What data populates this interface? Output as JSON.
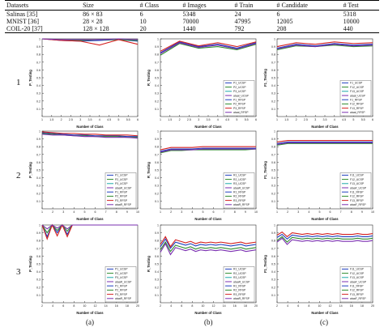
{
  "table": {
    "headers": [
      "Datasets",
      "Size",
      "# Class",
      "# Images",
      "# Train",
      "# Candidate",
      "# Test"
    ],
    "rows": [
      [
        "Salinas [35]",
        "86 × 83",
        "6",
        "5348",
        "24",
        "6",
        "5318"
      ],
      [
        "MNIST [36]",
        "28 × 28",
        "10",
        "70000",
        "47995",
        "12005",
        "10000"
      ],
      [
        "COIL-20 [37]",
        "128 × 128",
        "20",
        "1440",
        "792",
        "208",
        "440"
      ]
    ]
  },
  "row_labels": [
    "1",
    "2",
    "3"
  ],
  "col_labels": [
    "(a)",
    "(b)",
    "(c)"
  ],
  "colors": {
    "UCSP": [
      "#1f3fbf",
      "#2e8b2e",
      "#18a8a8",
      "#7a2fb0"
    ],
    "RFSP": [
      "#1f3fbf",
      "#2e8b2e",
      "#d42020",
      "#7a2fb0"
    ]
  },
  "chart_data": [
    {
      "type": "line",
      "row": 1,
      "col": "a",
      "xlabel": "Number of Class",
      "ylabel": "P_Testing",
      "x_ticks": [
        "1",
        "1.5",
        "2",
        "2.5",
        "3",
        "3.5",
        "4",
        "4.5",
        "5",
        "5.5",
        "6"
      ],
      "y_ticks": [
        "0.1",
        "0.2",
        "0.3",
        "0.4",
        "0.5",
        "0.6",
        "0.7",
        "0.8",
        "0.9",
        "1"
      ],
      "ylim": [
        0,
        1
      ],
      "xlim": [
        1,
        6
      ],
      "x": [
        1,
        2,
        3,
        4,
        5,
        6
      ],
      "series": [
        {
          "values": [
            1.0,
            0.98,
            0.97,
            0.98,
            0.99,
            0.97
          ]
        },
        {
          "values": [
            1.0,
            0.99,
            0.98,
            0.99,
            0.99,
            0.98
          ]
        },
        {
          "values": [
            1.0,
            0.98,
            0.97,
            0.92,
            0.99,
            0.93
          ]
        },
        {
          "values": [
            1.0,
            0.99,
            0.99,
            0.99,
            1.0,
            0.99
          ]
        }
      ]
    },
    {
      "type": "line",
      "row": 1,
      "col": "b",
      "xlabel": "Number of Class",
      "ylabel": "R_Testing",
      "x_ticks": [
        "1",
        "1.5",
        "2",
        "2.5",
        "3",
        "3.5",
        "4",
        "4.5",
        "5",
        "5.5",
        "6"
      ],
      "y_ticks": [
        "0.1",
        "0.2",
        "0.3",
        "0.4",
        "0.5",
        "0.6",
        "0.7",
        "0.8",
        "0.9",
        "1"
      ],
      "ylim": [
        0,
        1
      ],
      "xlim": [
        1,
        6
      ],
      "x": [
        1,
        2,
        3,
        4,
        5,
        6
      ],
      "legend": [
        "P1_UCSP",
        "P2_UCSP",
        "P3_UCSP",
        "ataat_UCSP",
        "P1_RFSP",
        "P2_RFSP",
        "P3_RFSP",
        "ataat_RFSP"
      ],
      "series": [
        {
          "values": [
            0.82,
            0.96,
            0.9,
            0.93,
            0.88,
            0.95
          ]
        },
        {
          "values": [
            0.79,
            0.94,
            0.88,
            0.9,
            0.86,
            0.93
          ]
        },
        {
          "values": [
            0.84,
            0.97,
            0.91,
            0.95,
            0.9,
            0.96
          ]
        },
        {
          "values": [
            0.81,
            0.95,
            0.89,
            0.92,
            0.87,
            0.94
          ]
        }
      ]
    },
    {
      "type": "line",
      "row": 1,
      "col": "c",
      "xlabel": "Number of Class",
      "ylabel": "F1_Testing",
      "x_ticks": [
        "1",
        "1.5",
        "2",
        "2.5",
        "3",
        "3.5",
        "4",
        "4.5",
        "5",
        "5.5",
        "6"
      ],
      "y_ticks": [
        "0.1",
        "0.2",
        "0.3",
        "0.4",
        "0.5",
        "0.6",
        "0.7",
        "0.8",
        "0.9",
        "1"
      ],
      "ylim": [
        0,
        1
      ],
      "xlim": [
        1,
        6
      ],
      "x": [
        1,
        2,
        3,
        4,
        5,
        6
      ],
      "legend": [
        "F1_UCSP",
        "F12_UCSP",
        "F13_UCSP",
        "ataat_UCSP",
        "F1_RFSP",
        "F12_RFSP",
        "F13_RFSP",
        "ataat_RFSP"
      ],
      "series": [
        {
          "values": [
            0.88,
            0.93,
            0.91,
            0.94,
            0.92,
            0.93
          ]
        },
        {
          "values": [
            0.86,
            0.91,
            0.9,
            0.92,
            0.9,
            0.91
          ]
        },
        {
          "values": [
            0.9,
            0.95,
            0.93,
            0.96,
            0.94,
            0.95
          ]
        },
        {
          "values": [
            0.87,
            0.92,
            0.9,
            0.93,
            0.91,
            0.92
          ]
        }
      ]
    },
    {
      "type": "line",
      "row": 2,
      "col": "a",
      "xlabel": "Number of Class",
      "ylabel": "P_Testing",
      "x_ticks": [
        "1",
        "2",
        "3",
        "4",
        "5",
        "6",
        "7",
        "8",
        "9",
        "10"
      ],
      "y_ticks": [
        "0.1",
        "0.2",
        "0.3",
        "0.4",
        "0.5",
        "0.6",
        "0.7",
        "0.8",
        "0.9",
        "1"
      ],
      "ylim": [
        0,
        1
      ],
      "xlim": [
        1,
        10
      ],
      "x": [
        1,
        2,
        3,
        4,
        5,
        6,
        7,
        8,
        9,
        10
      ],
      "legend": [
        "P1_UCSP",
        "P2_UCSP",
        "P3_UCSP",
        "ataaR_UCSP",
        "P1_RFSP",
        "P2_RFSP",
        "P3_RFSP",
        "ataaR_RFSP"
      ],
      "series": [
        {
          "values": [
            0.98,
            0.97,
            0.96,
            0.95,
            0.95,
            0.94,
            0.94,
            0.94,
            0.93,
            0.93
          ]
        },
        {
          "values": [
            0.97,
            0.96,
            0.95,
            0.94,
            0.94,
            0.93,
            0.93,
            0.93,
            0.92,
            0.92
          ]
        },
        {
          "values": [
            0.99,
            0.98,
            0.97,
            0.97,
            0.96,
            0.96,
            0.95,
            0.95,
            0.95,
            0.94
          ]
        },
        {
          "values": [
            0.96,
            0.95,
            0.95,
            0.94,
            0.93,
            0.93,
            0.92,
            0.92,
            0.92,
            0.91
          ]
        }
      ]
    },
    {
      "type": "line",
      "row": 2,
      "col": "b",
      "xlabel": "Number of Class",
      "ylabel": "R_Testing",
      "x_ticks": [
        "1",
        "2",
        "3",
        "4",
        "5",
        "6",
        "7",
        "8",
        "9",
        "10"
      ],
      "y_ticks": [
        "0.1",
        "0.2",
        "0.3",
        "0.4",
        "0.5",
        "0.6",
        "0.7",
        "0.8",
        "0.9",
        "1"
      ],
      "ylim": [
        0,
        1
      ],
      "xlim": [
        1,
        10
      ],
      "x": [
        1,
        2,
        3,
        4,
        5,
        6,
        7,
        8,
        9,
        10
      ],
      "legend": [
        "R1_UCSP",
        "R2_UCSP",
        "R3_UCSP",
        "ataaR_UCSP",
        "R1_RFSP",
        "R2_RFSP",
        "R3_RFSP",
        "ataaR_RFSP"
      ],
      "series": [
        {
          "values": [
            0.74,
            0.77,
            0.77,
            0.77,
            0.78,
            0.78,
            0.78,
            0.78,
            0.78,
            0.78
          ]
        },
        {
          "values": [
            0.72,
            0.75,
            0.75,
            0.76,
            0.76,
            0.76,
            0.76,
            0.76,
            0.76,
            0.77
          ]
        },
        {
          "values": [
            0.76,
            0.79,
            0.79,
            0.79,
            0.8,
            0.8,
            0.8,
            0.8,
            0.8,
            0.8
          ]
        },
        {
          "values": [
            0.73,
            0.76,
            0.76,
            0.76,
            0.77,
            0.77,
            0.77,
            0.77,
            0.77,
            0.77
          ]
        }
      ]
    },
    {
      "type": "line",
      "row": 2,
      "col": "c",
      "xlabel": "Number of Class",
      "ylabel": "F1_Testing",
      "x_ticks": [
        "1",
        "2",
        "3",
        "4",
        "5",
        "6",
        "7",
        "8",
        "9",
        "10"
      ],
      "y_ticks": [
        "0.1",
        "0.2",
        "0.3",
        "0.4",
        "0.5",
        "0.6",
        "0.7",
        "0.8",
        "0.9",
        "1"
      ],
      "ylim": [
        0,
        1
      ],
      "xlim": [
        1,
        10
      ],
      "x": [
        1,
        2,
        3,
        4,
        5,
        6,
        7,
        8,
        9,
        10
      ],
      "legend": [
        "F11_UCSP",
        "F12_UCSP",
        "F13_UCSP",
        "ataaF_UCSP",
        "F11_RFSP",
        "F12_RFSP",
        "F13_RFSP",
        "ataaF_RFSP"
      ],
      "series": [
        {
          "values": [
            0.84,
            0.86,
            0.86,
            0.86,
            0.86,
            0.86,
            0.86,
            0.86,
            0.86,
            0.86
          ]
        },
        {
          "values": [
            0.82,
            0.84,
            0.84,
            0.84,
            0.84,
            0.84,
            0.84,
            0.84,
            0.84,
            0.84
          ]
        },
        {
          "values": [
            0.86,
            0.88,
            0.88,
            0.88,
            0.88,
            0.88,
            0.88,
            0.88,
            0.88,
            0.88
          ]
        },
        {
          "values": [
            0.83,
            0.85,
            0.85,
            0.85,
            0.85,
            0.85,
            0.85,
            0.85,
            0.85,
            0.85
          ]
        }
      ]
    },
    {
      "type": "line",
      "row": 3,
      "col": "a",
      "xlabel": "Number of Class",
      "ylabel": "P_Testing",
      "x_ticks": [
        "2",
        "4",
        "6",
        "8",
        "10",
        "12",
        "14",
        "16",
        "18",
        "20"
      ],
      "y_ticks": [
        "0.1",
        "0.2",
        "0.3",
        "0.4",
        "0.5",
        "0.6",
        "0.7",
        "0.8",
        "0.9",
        "1"
      ],
      "ylim": [
        0,
        1
      ],
      "xlim": [
        1,
        20
      ],
      "x": [
        1,
        2,
        3,
        4,
        5,
        6,
        7,
        8,
        9,
        10,
        11,
        12,
        13,
        14,
        15,
        16,
        17,
        18,
        19,
        20
      ],
      "legend": [
        "P1_UCSP",
        "P2_UCSP",
        "P3_UCSP",
        "ataaR_UCSP",
        "P1_RFSP",
        "P2_RFSP",
        "P3_RFSP",
        "ataaR_RFSP"
      ],
      "series": [
        {
          "values": [
            1.0,
            0.85,
            1.0,
            0.9,
            1.0,
            0.88,
            1.0,
            1.0,
            1.0,
            1.0,
            1.0,
            1.0,
            1.0,
            1.0,
            1.0,
            1.0,
            1.0,
            1.0,
            1.0,
            1.0
          ]
        },
        {
          "values": [
            1.0,
            0.9,
            1.0,
            0.93,
            1.0,
            0.92,
            1.0,
            1.0,
            1.0,
            1.0,
            1.0,
            1.0,
            1.0,
            1.0,
            1.0,
            1.0,
            1.0,
            1.0,
            1.0,
            1.0
          ]
        },
        {
          "values": [
            1.0,
            0.82,
            1.0,
            0.86,
            1.0,
            0.85,
            1.0,
            1.0,
            1.0,
            1.0,
            1.0,
            1.0,
            1.0,
            1.0,
            1.0,
            1.0,
            1.0,
            1.0,
            1.0,
            1.0
          ]
        },
        {
          "values": [
            1.0,
            0.95,
            1.0,
            0.96,
            1.0,
            0.95,
            1.0,
            1.0,
            1.0,
            1.0,
            1.0,
            1.0,
            1.0,
            1.0,
            1.0,
            1.0,
            1.0,
            1.0,
            1.0,
            1.0
          ]
        }
      ]
    },
    {
      "type": "line",
      "row": 3,
      "col": "b",
      "xlabel": "Number of Class",
      "ylabel": "R_Testing",
      "x_ticks": [
        "2",
        "4",
        "6",
        "8",
        "10",
        "12",
        "14",
        "16",
        "18",
        "20"
      ],
      "y_ticks": [
        "0.1",
        "0.2",
        "0.3",
        "0.4",
        "0.5",
        "0.6",
        "0.7",
        "0.8",
        "0.9",
        "1"
      ],
      "ylim": [
        0,
        1
      ],
      "xlim": [
        1,
        20
      ],
      "x": [
        1,
        2,
        3,
        4,
        5,
        6,
        7,
        8,
        9,
        10,
        11,
        12,
        13,
        14,
        15,
        16,
        17,
        18,
        19,
        20
      ],
      "legend": [
        "R1_UCSP",
        "R2_UCSP",
        "R3_UCSP",
        "ataaR_UCSP",
        "R1_RFSP",
        "R2_RFSP",
        "R3_RFSP",
        "ataaR_RFSP"
      ],
      "series": [
        {
          "values": [
            0.72,
            0.82,
            0.7,
            0.78,
            0.76,
            0.74,
            0.76,
            0.73,
            0.75,
            0.74,
            0.75,
            0.74,
            0.75,
            0.74,
            0.73,
            0.74,
            0.75,
            0.73,
            0.74,
            0.75
          ]
        },
        {
          "values": [
            0.68,
            0.78,
            0.66,
            0.74,
            0.72,
            0.7,
            0.72,
            0.69,
            0.71,
            0.7,
            0.71,
            0.7,
            0.71,
            0.7,
            0.69,
            0.7,
            0.71,
            0.69,
            0.7,
            0.71
          ]
        },
        {
          "values": [
            0.75,
            0.85,
            0.72,
            0.81,
            0.79,
            0.77,
            0.79,
            0.76,
            0.78,
            0.77,
            0.78,
            0.77,
            0.78,
            0.77,
            0.76,
            0.77,
            0.78,
            0.76,
            0.77,
            0.78
          ]
        },
        {
          "values": [
            0.65,
            0.76,
            0.62,
            0.71,
            0.69,
            0.67,
            0.69,
            0.66,
            0.68,
            0.67,
            0.68,
            0.67,
            0.68,
            0.67,
            0.66,
            0.67,
            0.68,
            0.66,
            0.67,
            0.68
          ]
        }
      ]
    },
    {
      "type": "line",
      "row": 3,
      "col": "c",
      "xlabel": "Number of Class",
      "ylabel": "F1_Testing",
      "x_ticks": [
        "2",
        "4",
        "6",
        "8",
        "10",
        "12",
        "14",
        "16",
        "18",
        "20"
      ],
      "y_ticks": [
        "0.1",
        "0.2",
        "0.3",
        "0.4",
        "0.5",
        "0.6",
        "0.7",
        "0.8",
        "0.9",
        "1"
      ],
      "ylim": [
        0,
        1
      ],
      "xlim": [
        1,
        20
      ],
      "x": [
        1,
        2,
        3,
        4,
        5,
        6,
        7,
        8,
        9,
        10,
        11,
        12,
        13,
        14,
        15,
        16,
        17,
        18,
        19,
        20
      ],
      "legend": [
        "F11_UCSP",
        "F12_UCSP",
        "F13_UCSP",
        "ataaF_UCSP",
        "F11_RFSP",
        "F12_RFSP",
        "F13_RFSP",
        "ataaF_RFSP"
      ],
      "series": [
        {
          "values": [
            0.84,
            0.88,
            0.82,
            0.87,
            0.86,
            0.85,
            0.86,
            0.85,
            0.86,
            0.85,
            0.86,
            0.85,
            0.86,
            0.85,
            0.85,
            0.85,
            0.86,
            0.85,
            0.85,
            0.86
          ]
        },
        {
          "values": [
            0.8,
            0.85,
            0.78,
            0.84,
            0.83,
            0.82,
            0.83,
            0.82,
            0.83,
            0.82,
            0.83,
            0.82,
            0.83,
            0.82,
            0.82,
            0.82,
            0.83,
            0.82,
            0.82,
            0.83
          ]
        },
        {
          "values": [
            0.87,
            0.91,
            0.85,
            0.9,
            0.89,
            0.88,
            0.89,
            0.88,
            0.89,
            0.88,
            0.89,
            0.88,
            0.89,
            0.88,
            0.88,
            0.88,
            0.89,
            0.88,
            0.88,
            0.89
          ]
        },
        {
          "values": [
            0.78,
            0.83,
            0.75,
            0.81,
            0.8,
            0.79,
            0.8,
            0.79,
            0.8,
            0.79,
            0.8,
            0.79,
            0.8,
            0.79,
            0.79,
            0.79,
            0.8,
            0.79,
            0.79,
            0.8
          ]
        }
      ]
    }
  ]
}
